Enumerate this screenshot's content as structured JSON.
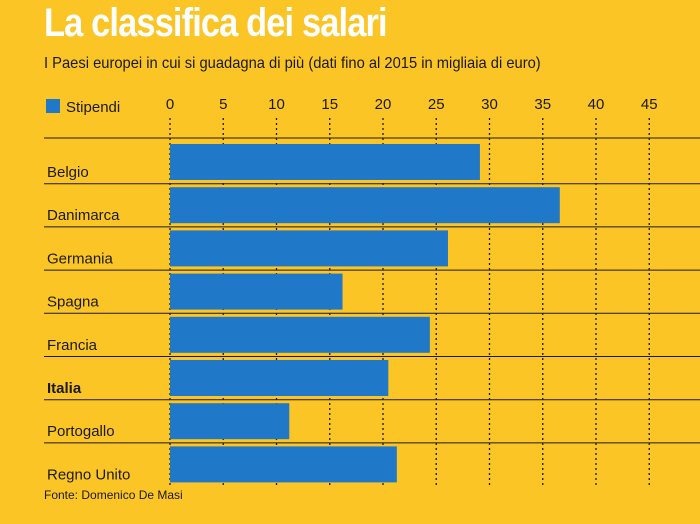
{
  "header": {
    "title": "La classifica dei salari",
    "subtitle": "I Paesi europei in cui si guadagna di più (dati fino al 2015 in migliaia di euro)"
  },
  "footer": {
    "source": "Fonte: Domenico De Masi"
  },
  "colors": {
    "background": "#fcc526",
    "bar": "#1f78c8",
    "title": "#ffffff",
    "text": "#1a1a1a"
  },
  "chart_data": {
    "type": "bar",
    "orientation": "horizontal",
    "categories": [
      "Belgio",
      "Danimarca",
      "Germania",
      "Spagna",
      "Francia",
      "Italia",
      "Portogallo",
      "Regno Unito"
    ],
    "bold_categories": [
      "Italia"
    ],
    "series": [
      {
        "name": "Stipendi",
        "values": [
          29.1,
          36.6,
          26.1,
          16.2,
          24.4,
          20.5,
          11.2,
          21.3
        ]
      }
    ],
    "xlim": [
      0,
      45
    ],
    "xticks": [
      0,
      5,
      10,
      15,
      20,
      25,
      30,
      35,
      40,
      45
    ],
    "legend_position": "top-left",
    "grid": true
  }
}
